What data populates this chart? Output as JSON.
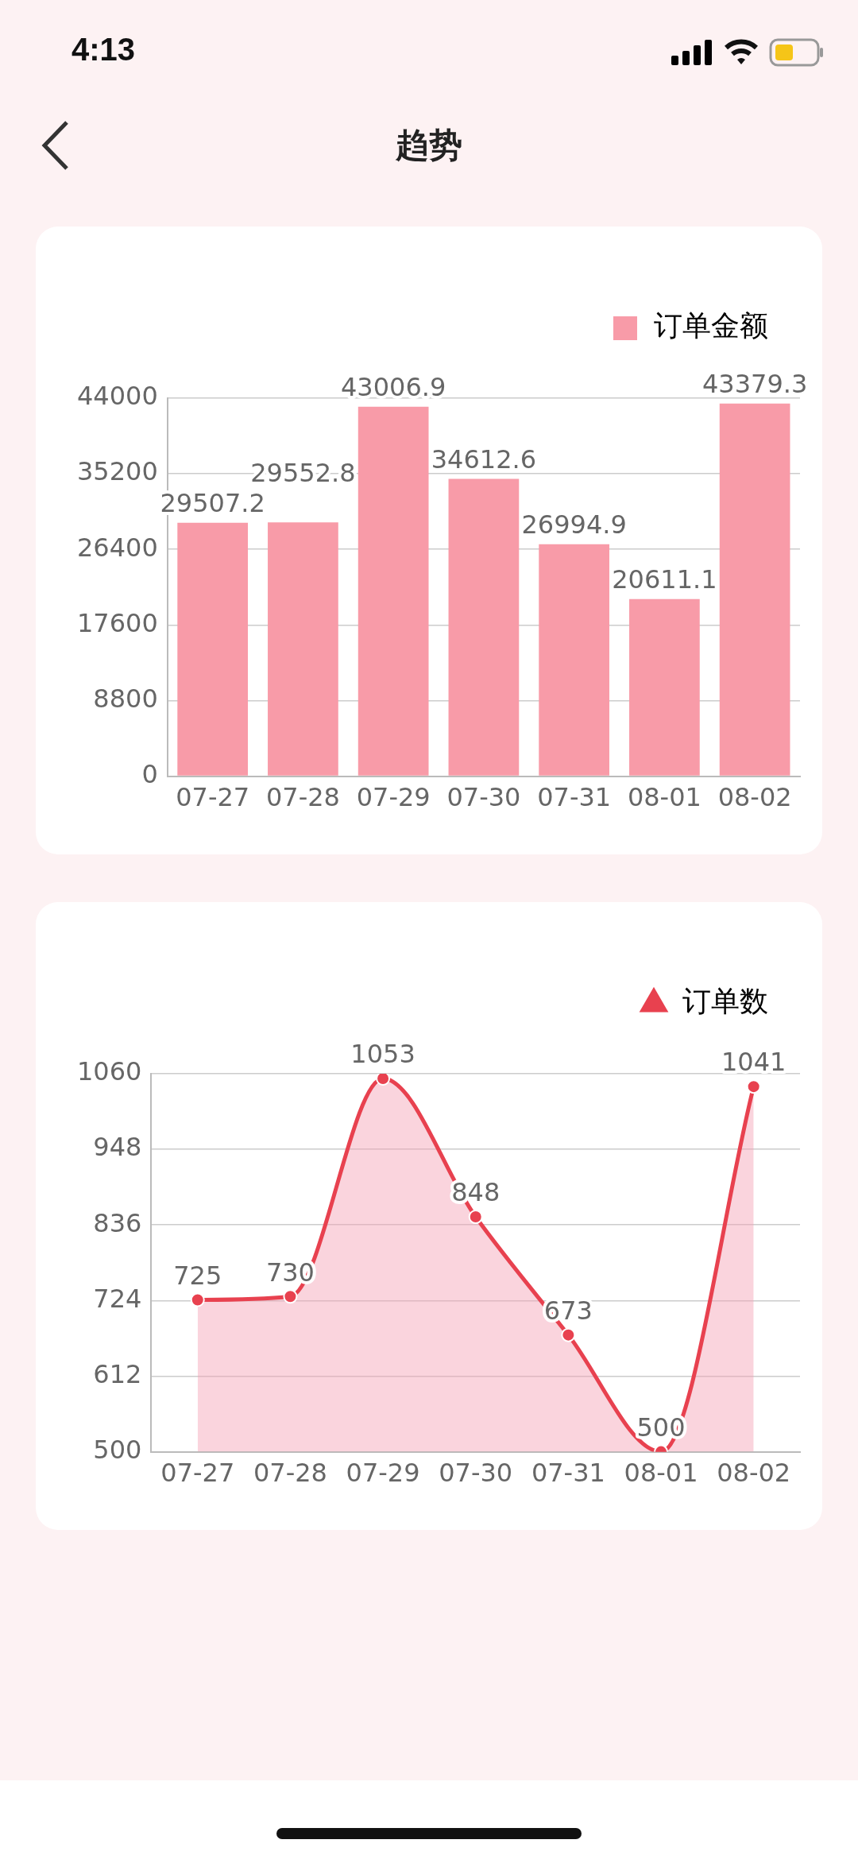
{
  "chart_data": [
    {
      "type": "bar",
      "title": "趋势",
      "annotations": [
        "4:13"
      ],
      "categories": [
        "07-27",
        "07-28",
        "07-29",
        "07-30",
        "07-31",
        "08-01",
        "08-02"
      ],
      "series": [
        {
          "name": "订单金额",
          "color": "#f89ba8",
          "values": [
            29507.2,
            29552.8,
            43006.9,
            34612.6,
            26994.9,
            20611.1,
            43379.3
          ]
        }
      ],
      "ylim": [
        0,
        44000
      ],
      "yticks": [
        0,
        8800,
        17600,
        26400,
        35200,
        44000
      ],
      "grid": "y",
      "legend": "top right",
      "data_labels": true
    },
    {
      "type": "area",
      "categories": [
        "07-27",
        "07-28",
        "07-29",
        "07-30",
        "07-31",
        "08-01",
        "08-02"
      ],
      "series": [
        {
          "name": "订单数",
          "color": "#e8414f",
          "values": [
            725,
            730,
            1053,
            848,
            673,
            500,
            1041
          ]
        }
      ],
      "ylim": [
        500,
        1060
      ],
      "yticks": [
        500,
        612,
        724,
        836,
        948,
        1060
      ],
      "grid": "y",
      "legend": "top right",
      "marker": "circle",
      "data_labels": true
    }
  ]
}
